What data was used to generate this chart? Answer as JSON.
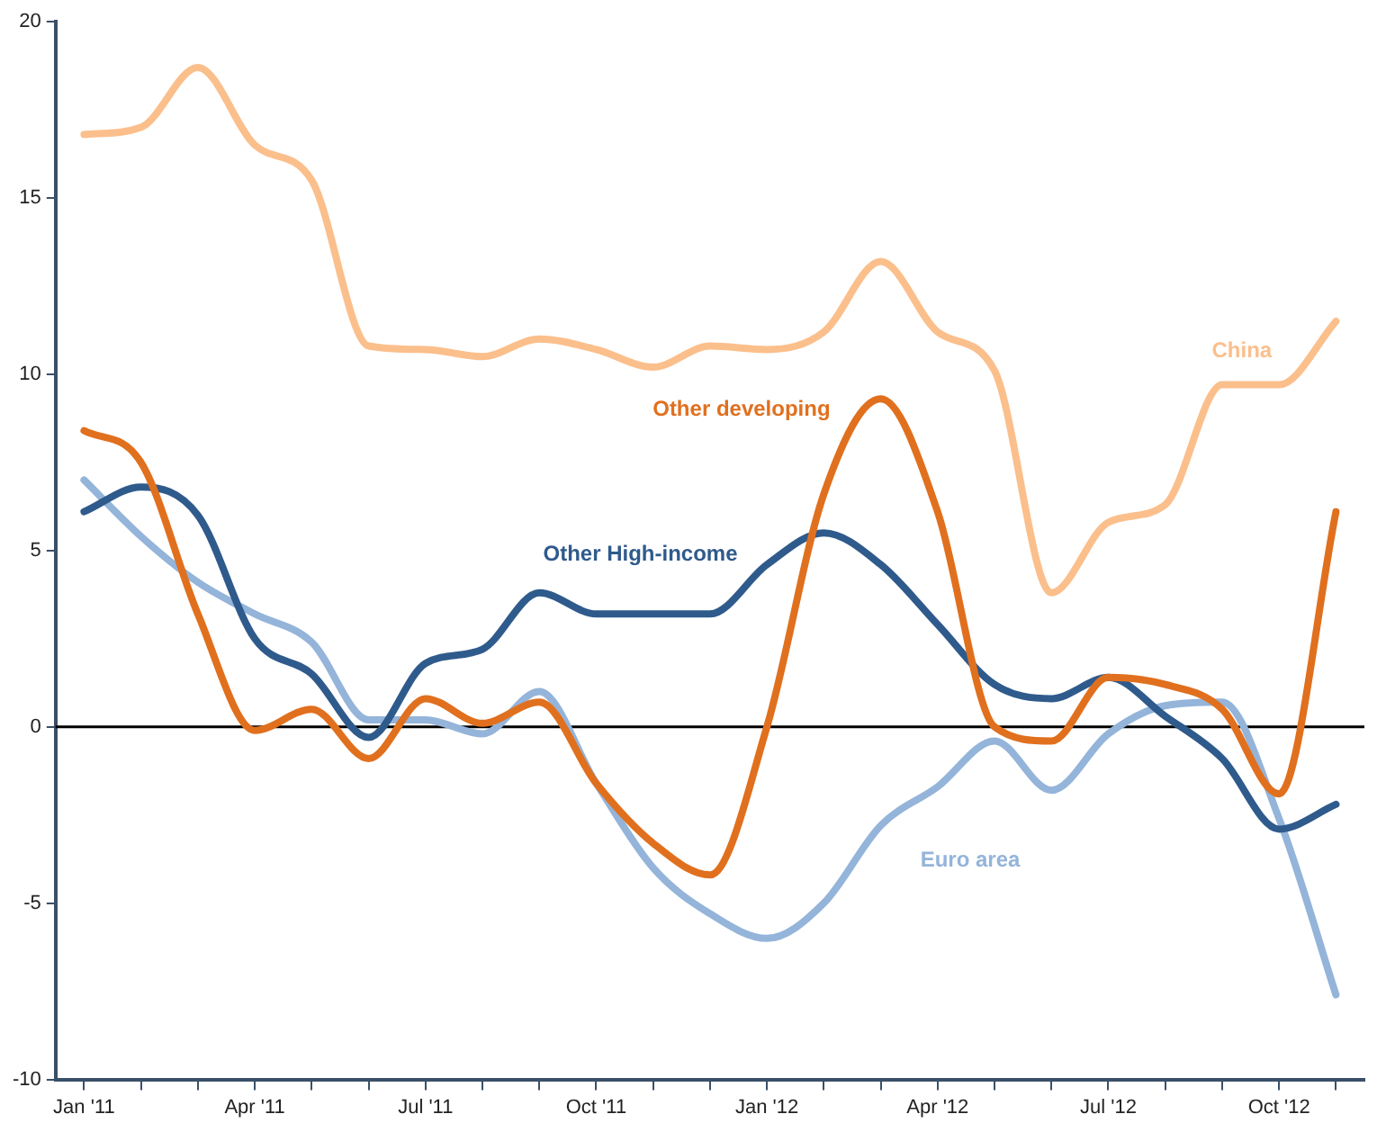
{
  "chart_data": {
    "type": "line",
    "categories": [
      "Jan '11",
      null,
      null,
      "Apr '11",
      null,
      null,
      "Jul '11",
      null,
      null,
      "Oct '11",
      null,
      null,
      "Jan '12",
      null,
      null,
      "Apr '12",
      null,
      null,
      "Jul '12",
      null,
      null,
      "Oct '12",
      null
    ],
    "series": [
      {
        "name": "China",
        "color": "#fbbf8c",
        "values": [
          16.8,
          17.0,
          18.7,
          16.5,
          15.5,
          10.8,
          10.7,
          10.5,
          11.0,
          10.7,
          10.2,
          10.8,
          10.7,
          11.2,
          13.2,
          11.2,
          10.1,
          3.8,
          5.8,
          6.3,
          9.7,
          9.7,
          11.5
        ]
      },
      {
        "name": "Other developing",
        "color": "#e0701e",
        "values": [
          8.4,
          7.5,
          3.2,
          -0.1,
          0.5,
          -0.9,
          0.8,
          0.1,
          0.7,
          -1.6,
          -3.3,
          -4.2,
          0.0,
          6.6,
          9.3,
          6.1,
          0.0,
          -0.4,
          1.4,
          1.2,
          0.5,
          -1.9,
          6.1
        ]
      },
      {
        "name": "Other High-income",
        "color": "#2f5a8c",
        "values": [
          6.1,
          6.8,
          6.0,
          2.5,
          1.5,
          -0.3,
          1.8,
          2.2,
          3.8,
          3.2,
          3.2,
          3.2,
          4.6,
          5.5,
          4.6,
          2.9,
          1.2,
          0.8,
          1.4,
          0.3,
          -0.9,
          -2.9,
          -2.2
        ]
      },
      {
        "name": "Euro area",
        "color": "#94b4da",
        "values": [
          7.0,
          5.4,
          4.1,
          3.2,
          2.4,
          0.2,
          0.2,
          -0.2,
          1.0,
          -1.6,
          -4.0,
          -5.3,
          -6.0,
          -5.0,
          -2.8,
          -1.7,
          -0.4,
          -1.8,
          -0.2,
          0.6,
          0.7,
          -2.6,
          -7.6
        ]
      }
    ],
    "ylim": [
      -10,
      20
    ],
    "yticks": [
      -10,
      -5,
      0,
      5,
      10,
      15,
      20
    ],
    "ref_lines": [
      {
        "axis": "y",
        "value": 0,
        "color": "#000000"
      }
    ],
    "grid": false,
    "legend": false,
    "marker": "none",
    "line_style": "solid"
  }
}
